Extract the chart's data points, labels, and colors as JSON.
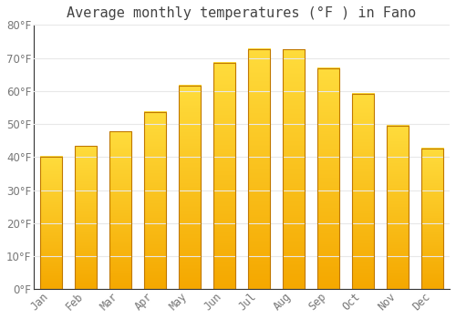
{
  "title": "Average monthly temperatures (°F ) in Fano",
  "months": [
    "Jan",
    "Feb",
    "Mar",
    "Apr",
    "May",
    "Jun",
    "Jul",
    "Aug",
    "Sep",
    "Oct",
    "Nov",
    "Dec"
  ],
  "values": [
    40.1,
    43.3,
    47.7,
    53.6,
    61.7,
    68.5,
    72.7,
    72.5,
    66.9,
    59.2,
    49.6,
    42.6
  ],
  "bar_color_bottom": "#F5A800",
  "bar_color_top": "#FFD040",
  "bar_color_mid": "#FFBB00",
  "background_color": "#FFFFFF",
  "plot_bg_color": "#FFFFFF",
  "grid_color": "#E8E8E8",
  "text_color": "#777777",
  "title_color": "#444444",
  "spine_color": "#333333",
  "ylim": [
    0,
    80
  ],
  "yticks": [
    0,
    10,
    20,
    30,
    40,
    50,
    60,
    70,
    80
  ],
  "title_fontsize": 11,
  "tick_fontsize": 8.5,
  "bar_width": 0.65
}
